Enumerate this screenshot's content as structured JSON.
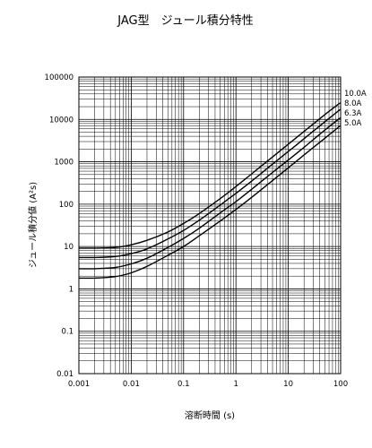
{
  "chart_data": {
    "type": "line",
    "title": "JAG型　ジュール積分特性",
    "xlabel": "溶断時間 (s)",
    "ylabel": "ジュール積分値 (A²s)",
    "x_scale": "log",
    "y_scale": "log",
    "xlim": [
      0.001,
      100
    ],
    "ylim": [
      0.01,
      100000
    ],
    "grid": true,
    "legend_position": "right",
    "x_ticks": [
      {
        "value": 0.001,
        "label": "0.001"
      },
      {
        "value": 0.01,
        "label": "0.01"
      },
      {
        "value": 0.1,
        "label": "0.1"
      },
      {
        "value": 1,
        "label": "1"
      },
      {
        "value": 10,
        "label": "10"
      },
      {
        "value": 100,
        "label": "100"
      }
    ],
    "y_ticks": [
      {
        "value": 0.01,
        "label": "0.01"
      },
      {
        "value": 0.1,
        "label": "0.1"
      },
      {
        "value": 1,
        "label": "1"
      },
      {
        "value": 10,
        "label": "10"
      },
      {
        "value": 100,
        "label": "100"
      },
      {
        "value": 1000,
        "label": "1000"
      },
      {
        "value": 10000,
        "label": "10000"
      },
      {
        "value": 100000,
        "label": "100000"
      }
    ],
    "series": [
      {
        "name": "10.0A",
        "x": [
          0.001,
          0.002,
          0.005,
          0.01,
          0.02,
          0.05,
          0.1,
          0.2,
          0.5,
          1,
          2,
          5,
          10,
          20,
          50,
          100
        ],
        "y": [
          9.2,
          9.2,
          9.5,
          11,
          14,
          22,
          35,
          60,
          135,
          260,
          520,
          1300,
          2600,
          5200,
          13000,
          25000
        ]
      },
      {
        "name": "8.0A",
        "x": [
          0.001,
          0.002,
          0.005,
          0.01,
          0.02,
          0.05,
          0.1,
          0.2,
          0.5,
          1,
          2,
          5,
          10,
          20,
          50,
          100
        ],
        "y": [
          5.5,
          5.5,
          5.8,
          6.8,
          8.8,
          15,
          24,
          42,
          95,
          180,
          350,
          880,
          1750,
          3500,
          8800,
          17500
        ]
      },
      {
        "name": "6.3A",
        "x": [
          0.001,
          0.002,
          0.005,
          0.01,
          0.02,
          0.05,
          0.1,
          0.2,
          0.5,
          1,
          2,
          5,
          10,
          20,
          50,
          100
        ],
        "y": [
          3.0,
          3.0,
          3.2,
          3.9,
          5.3,
          9.5,
          15.5,
          27,
          62,
          115,
          225,
          560,
          1100,
          2200,
          5600,
          11000
        ]
      },
      {
        "name": "5.0A",
        "x": [
          0.001,
          0.002,
          0.005,
          0.01,
          0.02,
          0.05,
          0.1,
          0.2,
          0.5,
          1,
          2,
          5,
          10,
          20,
          50,
          100
        ],
        "y": [
          1.8,
          1.8,
          1.95,
          2.4,
          3.4,
          6.2,
          10,
          18,
          40,
          75,
          145,
          360,
          720,
          1450,
          3600,
          7200
        ]
      }
    ]
  }
}
